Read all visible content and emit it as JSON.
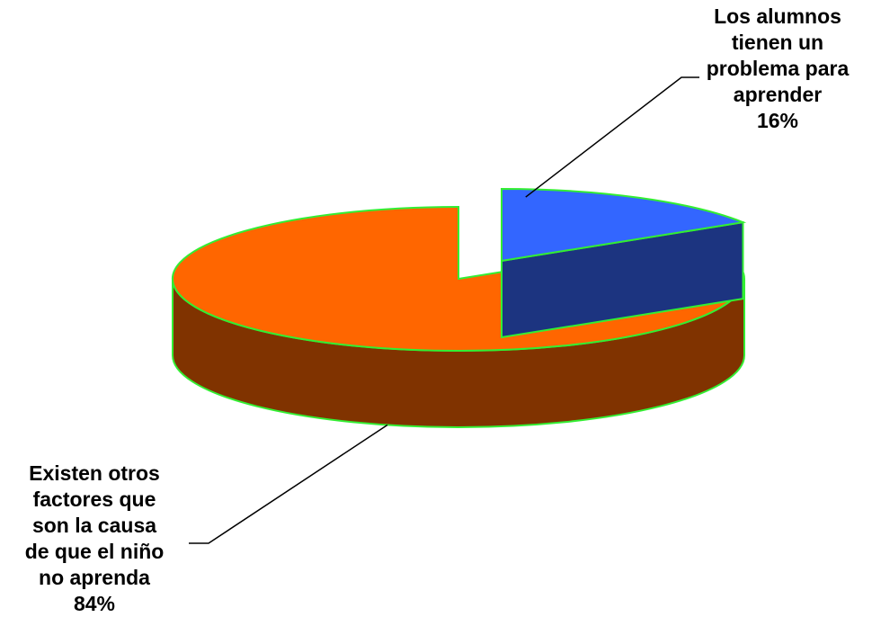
{
  "chart_data": {
    "type": "pie",
    "style": "3d-exploded",
    "slices": [
      {
        "label_lines": [
          "Los alumnos",
          "tienen un",
          "problema para",
          "aprender"
        ],
        "percent_label": "16%",
        "value": 16,
        "color": "#3366ff",
        "side_color": "#1c3480",
        "exploded": true
      },
      {
        "label_lines": [
          "Existen otros",
          "factores que",
          "son la causa",
          "de que el niño",
          "no aprenda"
        ],
        "percent_label": "84%",
        "value": 84,
        "color": "#ff6600",
        "side_color": "#803300",
        "exploded": false
      }
    ],
    "edge_color": "#33ee33",
    "legend": "none",
    "title": ""
  }
}
